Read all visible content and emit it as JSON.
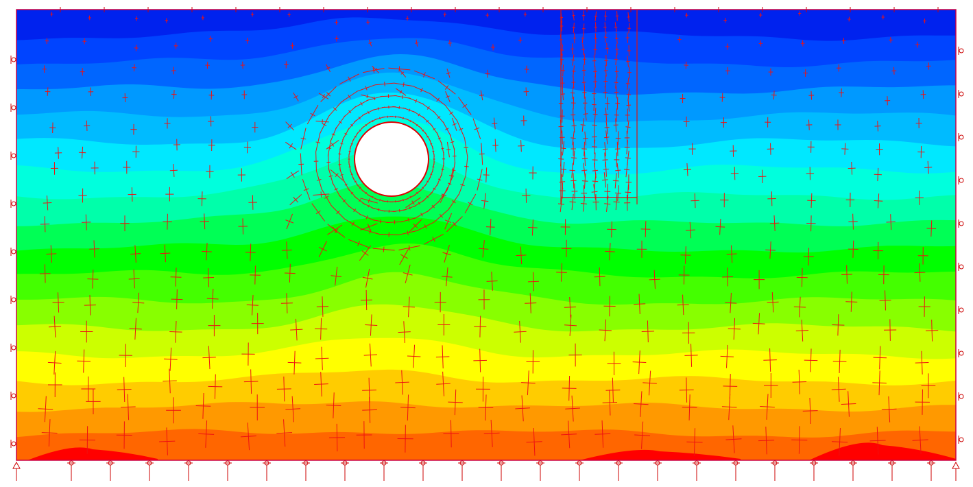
{
  "colors": {
    "contour_bands": [
      "#0022ee",
      "#0044ff",
      "#0066ff",
      "#0099ff",
      "#00bbff",
      "#00e8ff",
      "#00ffdd",
      "#00ffaa",
      "#00ff55",
      "#00ff00",
      "#44ff00",
      "#88ff00",
      "#ccff00",
      "#ffff00",
      "#ffcc00",
      "#ff9900",
      "#ff6600"
    ],
    "bottom_patches": "#ff0000",
    "stress_crosses": "#ee1111",
    "supports": "#cc0000",
    "border": "#cc0044"
  },
  "features": {
    "opening": "circular-tunnel",
    "structure": "pile-group",
    "boundary_supports": [
      "left",
      "right",
      "bottom"
    ]
  }
}
